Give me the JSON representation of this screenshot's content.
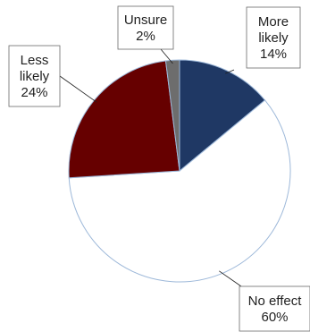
{
  "chart_data": {
    "type": "pie",
    "title": "",
    "slices": [
      {
        "label_lines": [
          "More",
          "likely",
          "14%"
        ],
        "name": "More likely",
        "value": 14,
        "color": "#1f3864"
      },
      {
        "label_lines": [
          "No effect",
          "60%"
        ],
        "name": "No effect",
        "value": 60,
        "color": "#ffffff"
      },
      {
        "label_lines": [
          "Less",
          "likely",
          "24%"
        ],
        "name": "Less likely",
        "value": 24,
        "color": "#660000"
      },
      {
        "label_lines": [
          "Unsure",
          "2%"
        ],
        "name": "Unsure",
        "value": 2,
        "color": "#6d6d6d"
      }
    ],
    "start_angle_deg": 0,
    "direction": "clockwise",
    "legend": "none",
    "data_labels": "callouts"
  }
}
